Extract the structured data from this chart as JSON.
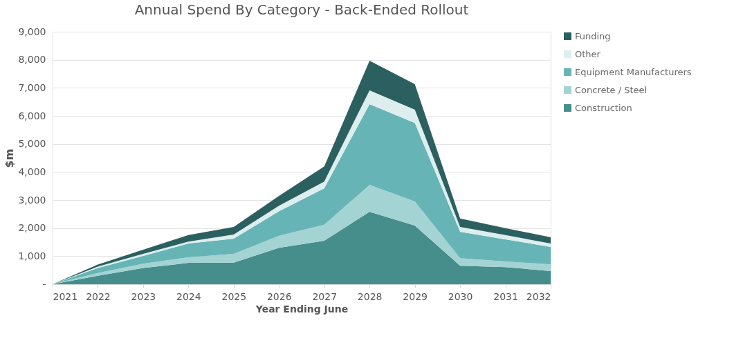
{
  "chart_data": {
    "type": "area",
    "title": "Annual Spend By Category - Back-Ended  Rollout",
    "xlabel": "Year Ending June",
    "ylabel": "$m",
    "x": [
      2021,
      2022,
      2023,
      2024,
      2025,
      2026,
      2027,
      2028,
      2029,
      2030,
      2031,
      2032
    ],
    "xlim": [
      2021,
      2032
    ],
    "xticks": [
      2021,
      2022,
      2023,
      2024,
      2025,
      2026,
      2027,
      2028,
      2029,
      2030,
      2031,
      2032
    ],
    "ylim": [
      0,
      9000
    ],
    "yticks": [
      {
        "value": 0,
        "label": "-"
      },
      {
        "value": 1000,
        "label": "1,000"
      },
      {
        "value": 2000,
        "label": "2,000"
      },
      {
        "value": 3000,
        "label": "3,000"
      },
      {
        "value": 4000,
        "label": "4,000"
      },
      {
        "value": 5000,
        "label": "5,000"
      },
      {
        "value": 6000,
        "label": "6,000"
      },
      {
        "value": 7000,
        "label": "7,000"
      },
      {
        "value": 8000,
        "label": "8,000"
      },
      {
        "value": 9000,
        "label": "9,000"
      }
    ],
    "stacked": true,
    "grid": "y",
    "legend": "right",
    "series": [
      {
        "name": "Construction",
        "color": "#458e8c",
        "values": [
          0,
          300,
          580,
          760,
          770,
          1300,
          1550,
          2580,
          2090,
          660,
          610,
          470
        ]
      },
      {
        "name": "Concrete / Steel",
        "color": "#a3d3d2",
        "values": [
          0,
          100,
          150,
          200,
          310,
          430,
          570,
          960,
          860,
          270,
          200,
          240
        ]
      },
      {
        "name": "Equipment Manufacturers",
        "color": "#67b4b6",
        "values": [
          0,
          180,
          280,
          490,
          540,
          870,
          1300,
          2880,
          2800,
          940,
          790,
          620
        ]
      },
      {
        "name": "Other",
        "color": "#dceeee",
        "values": [
          0,
          50,
          70,
          70,
          150,
          200,
          240,
          490,
          470,
          170,
          150,
          120
        ]
      },
      {
        "name": "Funding",
        "color": "#2c6060",
        "values": [
          0,
          70,
          150,
          230,
          270,
          350,
          540,
          1060,
          910,
          300,
          250,
          220
        ]
      }
    ]
  }
}
